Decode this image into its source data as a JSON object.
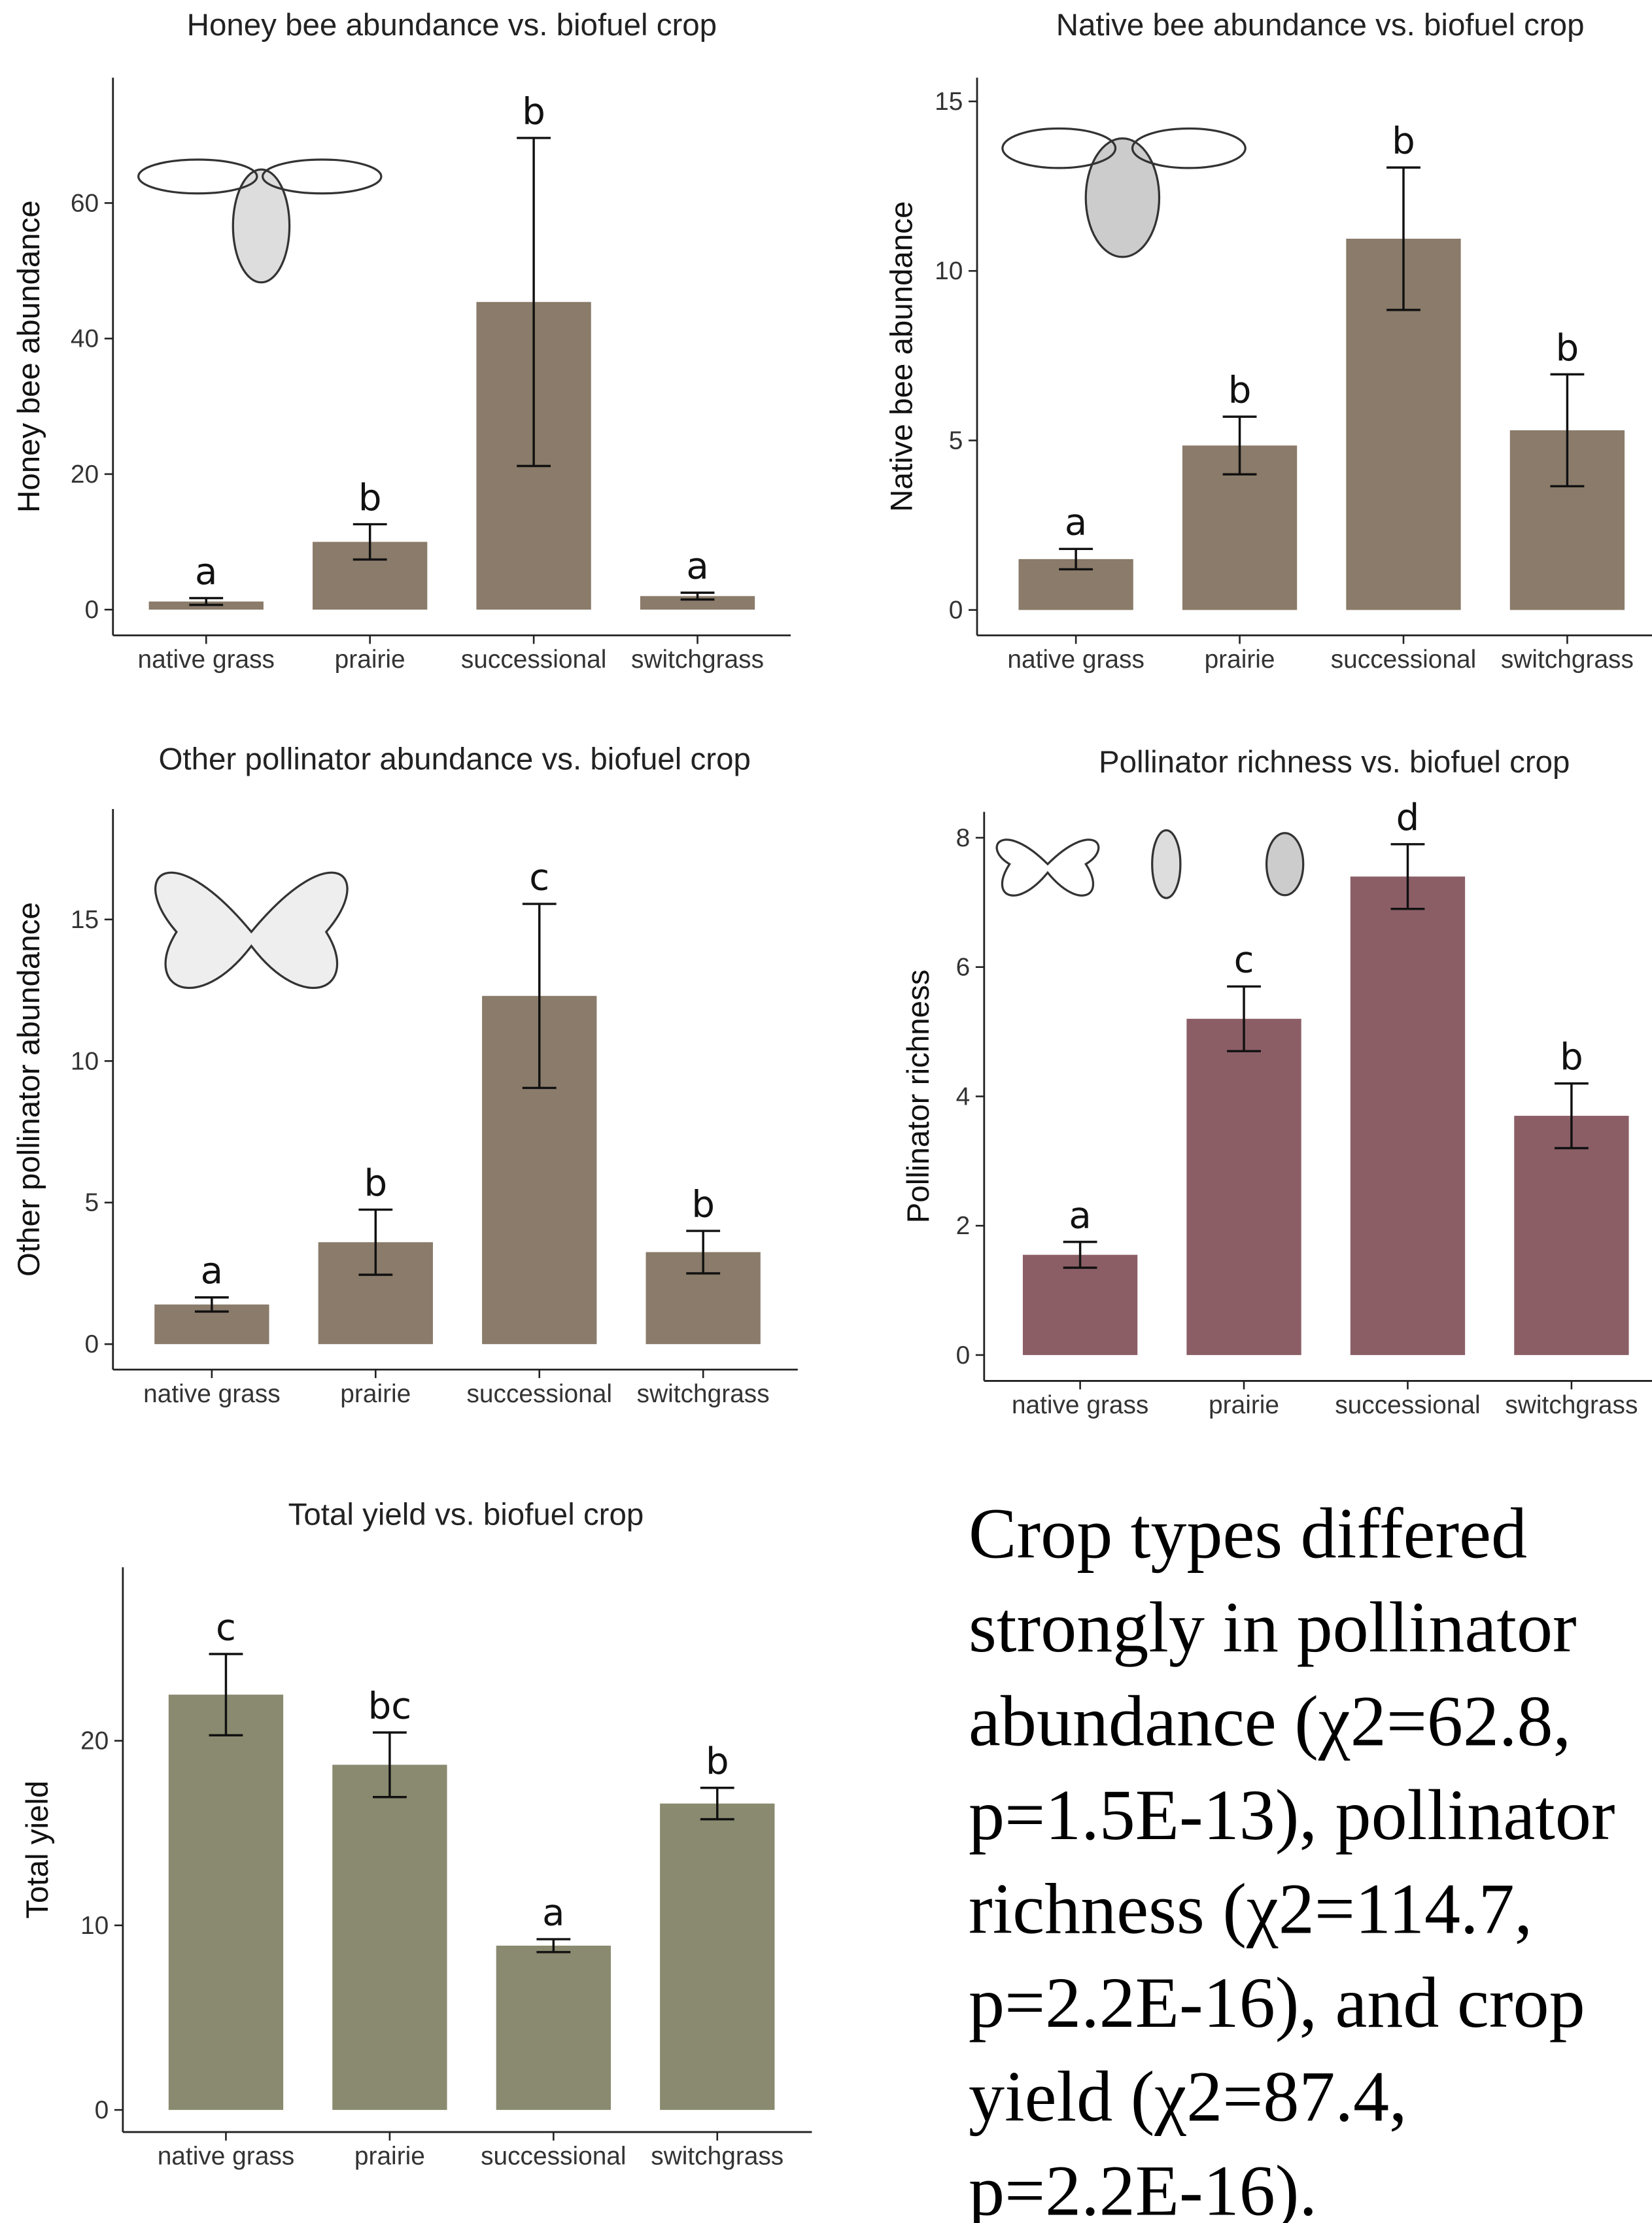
{
  "chart_data": [
    {
      "type": "bar",
      "title": "Honey bee abundance vs. biofuel crop",
      "y_label": "Honey bee abundance",
      "categories": [
        "native grass",
        "prairie",
        "successional",
        "switchgrass"
      ],
      "values": [
        1.2,
        10,
        45.4,
        2
      ],
      "errors": [
        0.5,
        2.6,
        24.2,
        0.5
      ],
      "annotations": [
        "a",
        "b",
        "b",
        "a"
      ],
      "color": "#8a7b6a",
      "ylim": [
        -3.8,
        78.5
      ],
      "yticks": [
        0,
        20,
        40,
        60
      ]
    },
    {
      "type": "bar",
      "title": "Native bee abundance vs. biofuel crop",
      "y_label": "Native bee abundance",
      "categories": [
        "native grass",
        "prairie",
        "successional",
        "switchgrass"
      ],
      "values": [
        1.5,
        4.85,
        10.95,
        5.3
      ],
      "errors": [
        0.3,
        0.85,
        2.1,
        1.65
      ],
      "annotations": [
        "a",
        "b",
        "b",
        "b"
      ],
      "color": "#8a7b6a",
      "ylim": [
        -0.75,
        15.7
      ],
      "yticks": [
        0,
        5,
        10,
        15
      ]
    },
    {
      "type": "bar",
      "title": "Other pollinator abundance vs. biofuel crop",
      "y_label": "Other pollinator abundance",
      "categories": [
        "native grass",
        "prairie",
        "successional",
        "switchgrass"
      ],
      "values": [
        1.4,
        3.6,
        12.3,
        3.25
      ],
      "errors": [
        0.25,
        1.15,
        3.25,
        0.75
      ],
      "annotations": [
        "a",
        "b",
        "c",
        "b"
      ],
      "color": "#8a7b6a",
      "ylim": [
        -0.9,
        18.9
      ],
      "yticks": [
        0,
        5,
        10,
        15
      ]
    },
    {
      "type": "bar",
      "title": "Pollinator richness vs. biofuel crop",
      "y_label": "Pollinator richness",
      "categories": [
        "native grass",
        "prairie",
        "successional",
        "switchgrass"
      ],
      "values": [
        1.55,
        5.2,
        7.4,
        3.7
      ],
      "errors": [
        0.2,
        0.5,
        0.5,
        0.5
      ],
      "annotations": [
        "a",
        "c",
        "d",
        "b"
      ],
      "color": "#8b5e66",
      "ylim": [
        -0.4,
        8.4
      ],
      "yticks": [
        0,
        2,
        4,
        6,
        8
      ]
    },
    {
      "type": "bar",
      "title": "Total yield vs. biofuel crop",
      "y_label": "Total yield",
      "categories": [
        "native grass",
        "prairie",
        "successional",
        "switchgrass"
      ],
      "values": [
        22.5,
        18.7,
        8.9,
        16.6
      ],
      "errors": [
        2.2,
        1.75,
        0.35,
        0.85
      ],
      "annotations": [
        "c",
        "bc",
        "a",
        "b"
      ],
      "color": "#8a8a70",
      "ylim": [
        -1.2,
        29.4
      ],
      "yticks": [
        0,
        10,
        20
      ]
    }
  ],
  "caption": [
    "Crop types differed",
    "strongly in pollinator",
    "abundance (χ2=62.8,",
    "p=1.5E-13), pollinator",
    "richness (χ2=114.7,",
    "p=2.2E-16), and crop",
    "yield (χ2=87.4,",
    "p=2.2E-16)."
  ]
}
